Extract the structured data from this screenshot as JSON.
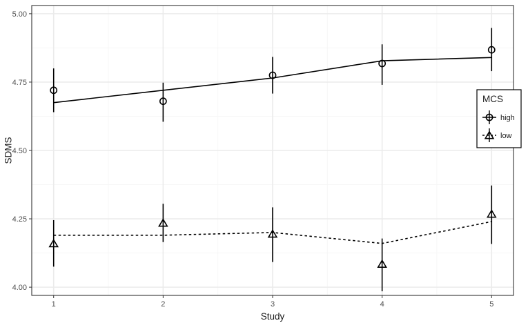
{
  "chart_data": {
    "type": "line",
    "xlabel": "Study",
    "ylabel": "SDMS",
    "x": [
      1,
      2,
      3,
      4,
      5
    ],
    "x_ticks": [
      "1",
      "2",
      "3",
      "4",
      "5"
    ],
    "y_ticks": [
      "4.00",
      "4.25",
      "4.50",
      "4.75",
      "5.00"
    ],
    "xlim": [
      0.8,
      5.2
    ],
    "ylim": [
      3.97,
      5.03
    ],
    "grid": true,
    "legend": {
      "title": "MCS",
      "placement": "right",
      "entries": [
        "high",
        "low"
      ]
    },
    "series": [
      {
        "name": "high",
        "marker": "circle",
        "line_style": "solid",
        "observed": [
          4.72,
          4.68,
          4.775,
          4.818,
          4.868
        ],
        "error_low": [
          4.64,
          4.605,
          4.708,
          4.74,
          4.79
        ],
        "error_high": [
          4.8,
          4.748,
          4.842,
          4.888,
          4.948
        ],
        "fitted": [
          4.675,
          4.72,
          4.765,
          4.828,
          4.84
        ]
      },
      {
        "name": "low",
        "marker": "triangle",
        "line_style": "dashed",
        "observed": [
          4.16,
          4.235,
          4.195,
          4.085,
          4.268
        ],
        "error_low": [
          4.075,
          4.165,
          4.092,
          3.985,
          4.158
        ],
        "error_high": [
          4.245,
          4.305,
          4.292,
          4.178,
          4.372
        ],
        "fitted": [
          4.19,
          4.19,
          4.2,
          4.16,
          4.24
        ]
      }
    ],
    "colors": {
      "panel_border": "#333333",
      "grid_major": "#ebebeb",
      "grid_minor": "#f5f5f5",
      "ink": "#000000"
    }
  }
}
